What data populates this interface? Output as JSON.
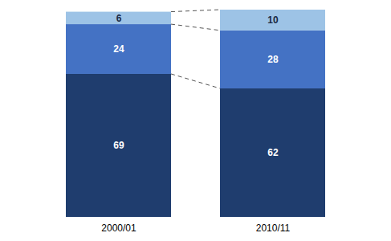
{
  "chart_data": {
    "type": "bar",
    "stacked": true,
    "categories": [
      "2000/01",
      "2010/11"
    ],
    "series": [
      {
        "color": "#1F3D6E",
        "values": [
          69,
          62
        ]
      },
      {
        "color": "#4472C4",
        "values": [
          24,
          28
        ]
      },
      {
        "color": "#9DC3E6",
        "values": [
          6,
          10
        ]
      }
    ],
    "ylim": [
      0,
      100
    ],
    "yticks": [],
    "tick_labels": "x",
    "data_labels": true
  }
}
